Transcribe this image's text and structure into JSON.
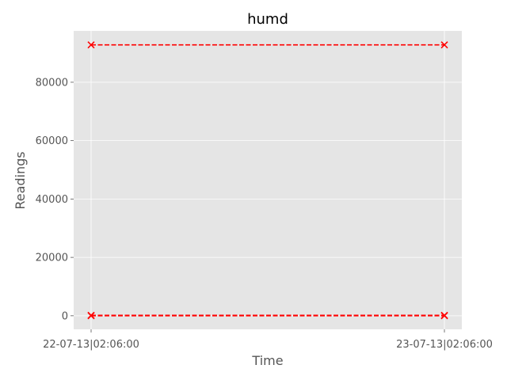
{
  "chart_data": {
    "type": "line",
    "title": "humd",
    "xlabel": "Time",
    "ylabel": "Readings",
    "x": [
      "22-07-13|02:06:00",
      "23-07-13|02:06:00"
    ],
    "ylim": [
      -4650,
      97600
    ],
    "yticks": [
      0,
      20000,
      40000,
      60000,
      80000
    ],
    "yticklabels": [
      "0",
      "20000",
      "40000",
      "60000",
      "80000"
    ],
    "grid": true,
    "series": [
      {
        "values": [
          92800,
          92800
        ],
        "color": "#ff0000",
        "linestyle": "dashed",
        "marker": "x"
      },
      {
        "values": [
          150,
          150
        ],
        "color": "#ff0000",
        "linestyle": "dashed",
        "marker": "x"
      },
      {
        "values": [
          0,
          0
        ],
        "color": "#ff0000",
        "linestyle": "dashed",
        "marker": "x"
      }
    ],
    "colors": {
      "background": "#e5e5e5",
      "grid": "#ffffff",
      "series": "#ff0000"
    }
  }
}
